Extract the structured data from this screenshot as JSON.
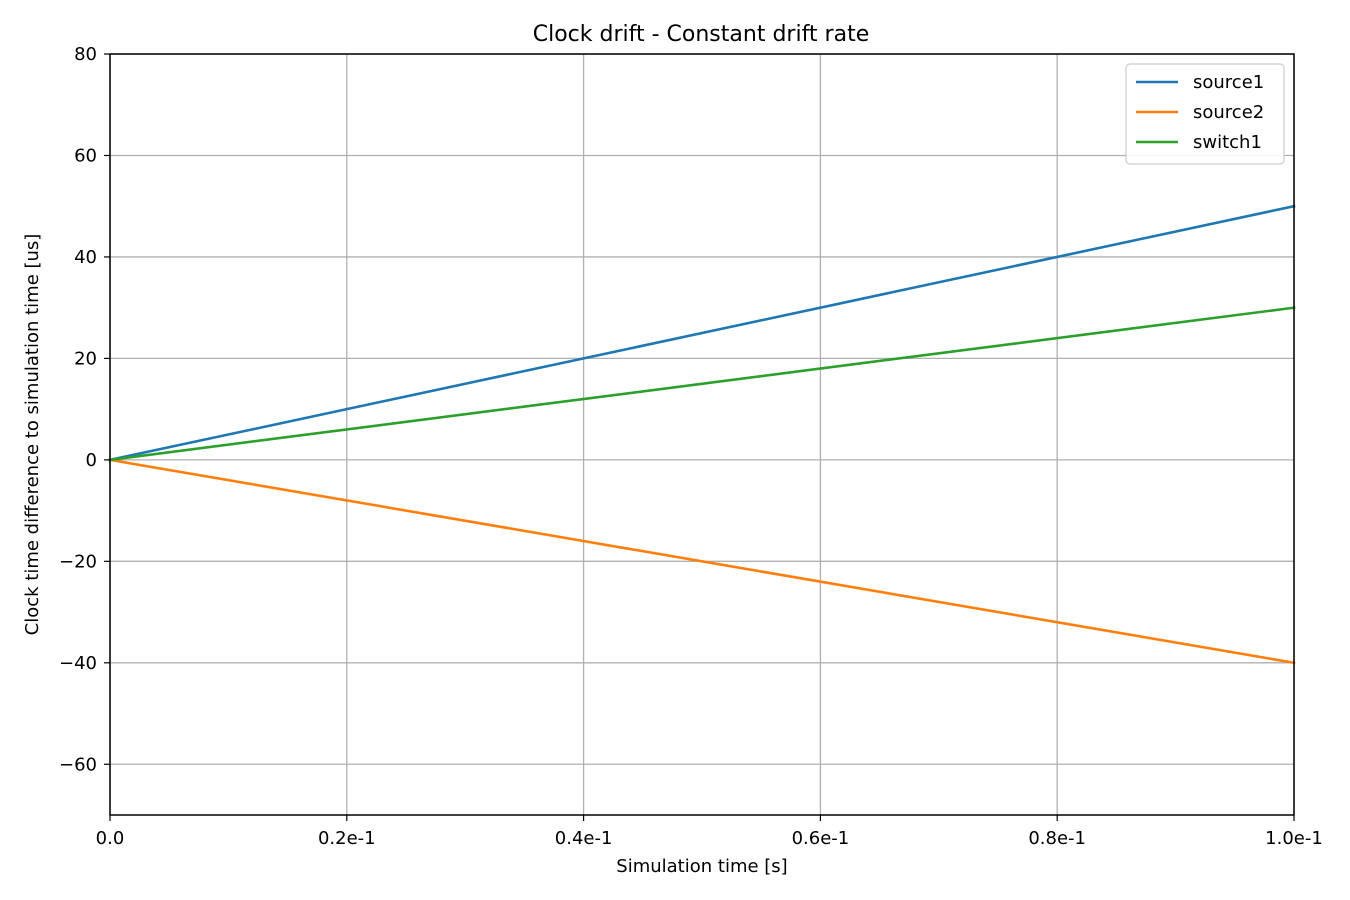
{
  "chart_data": {
    "type": "line",
    "title": "Clock drift - Constant drift rate",
    "xlabel": "Simulation time [s]",
    "ylabel": "Clock time difference to simulation time [us]",
    "x": [
      0.0,
      0.1
    ],
    "xlim": [
      0.0,
      0.1
    ],
    "ylim": [
      -70,
      80
    ],
    "xticks": [
      0.0,
      0.02,
      0.04,
      0.06,
      0.08,
      0.1
    ],
    "xtick_labels": [
      "0.0",
      "0.2e-1",
      "0.4e-1",
      "0.6e-1",
      "0.8e-1",
      "1.0e-1"
    ],
    "yticks": [
      -60,
      -40,
      -20,
      0,
      20,
      40,
      60,
      80
    ],
    "ytick_labels": [
      "−60",
      "−40",
      "−20",
      "0",
      "20",
      "40",
      "60",
      "80"
    ],
    "grid": true,
    "legend_position": "top-right",
    "series": [
      {
        "name": "source1",
        "color": "#1f77b4",
        "values": [
          0,
          50
        ]
      },
      {
        "name": "source2",
        "color": "#ff7f0e",
        "values": [
          0,
          -40
        ]
      },
      {
        "name": "switch1",
        "color": "#2ca02c",
        "values": [
          0,
          30
        ]
      }
    ]
  }
}
